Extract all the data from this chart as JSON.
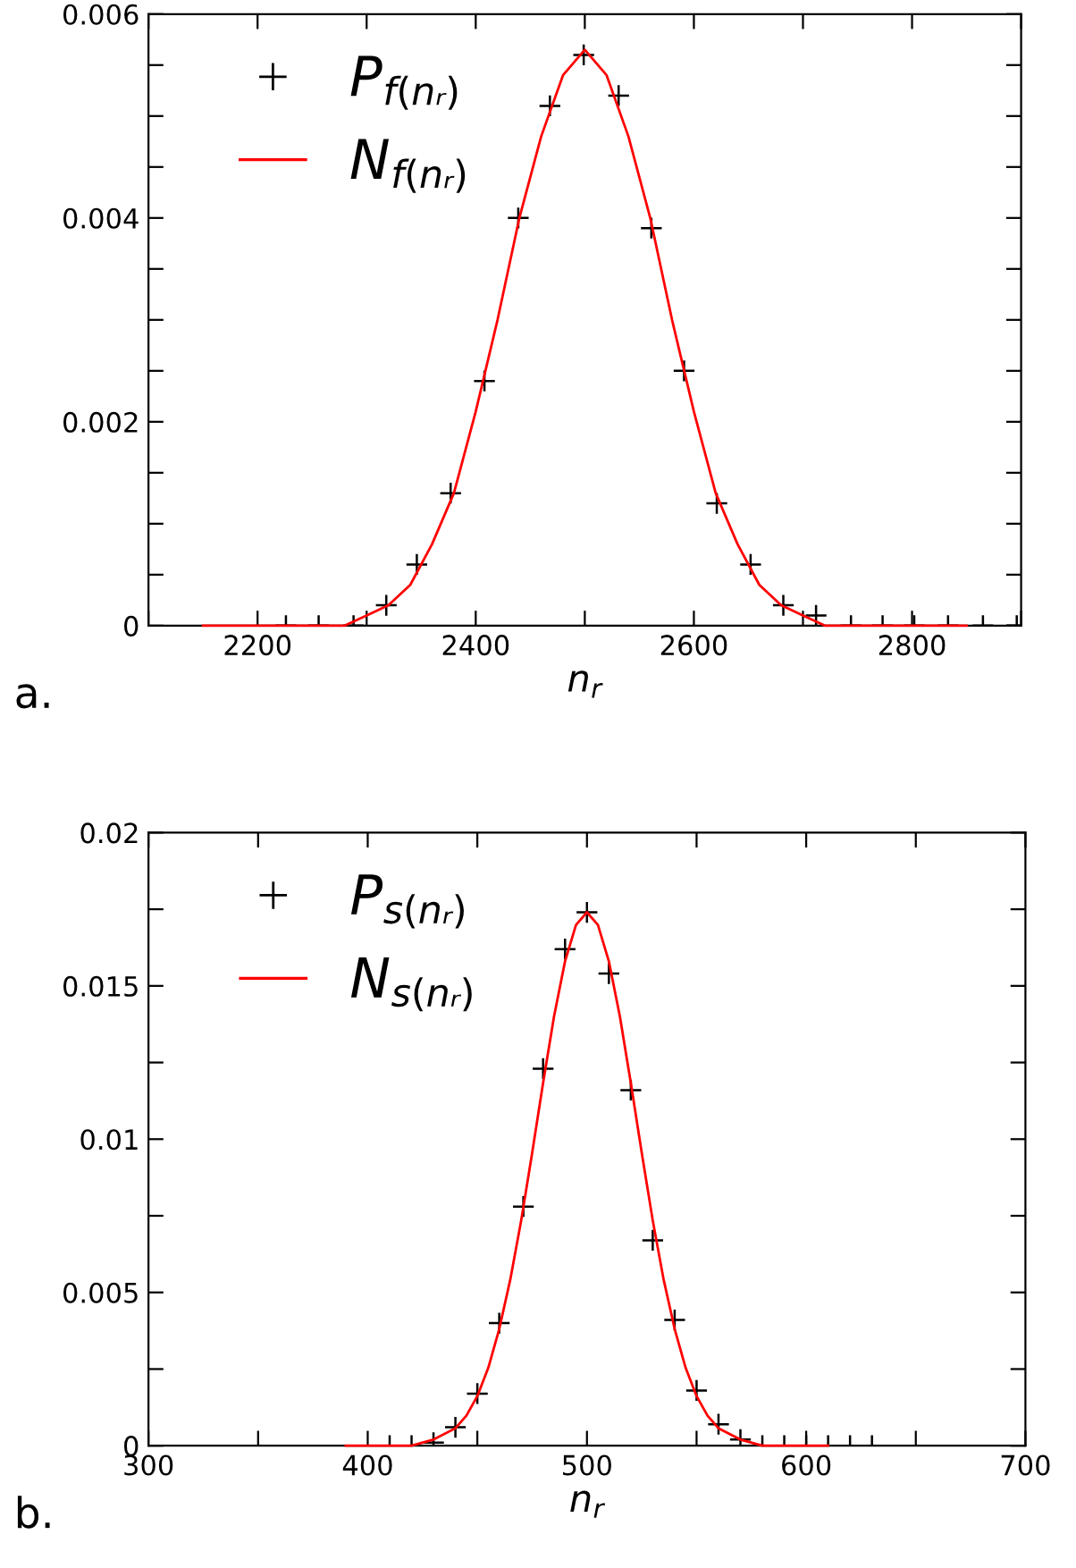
{
  "chart_data": [
    {
      "type": "scatter",
      "xlabel": "n$_{r}$",
      "annotations": [
        "a."
      ],
      "legend": "top left",
      "grid": false,
      "xlim": [
        2100,
        2900
      ],
      "xticks": [
        {
          "value": 2100,
          "label": null
        },
        2200,
        {
          "value": 2300,
          "label": null
        },
        2400,
        {
          "value": 2500,
          "label": null
        },
        2600,
        {
          "value": 2700,
          "label": null
        },
        2800,
        {
          "value": 2900,
          "label": null
        }
      ],
      "ylim": [
        0,
        0.006
      ],
      "yticks": [
        0,
        {
          "value": 0.0005,
          "label": null
        },
        {
          "value": 0.001,
          "label": null
        },
        {
          "value": 0.0015,
          "label": null
        },
        0.002,
        {
          "value": 0.0025,
          "label": null
        },
        {
          "value": 0.003,
          "label": null
        },
        {
          "value": 0.0035,
          "label": null
        },
        0.004,
        {
          "value": 0.0045,
          "label": null
        },
        {
          "value": 0.005,
          "label": null
        },
        {
          "value": 0.0055,
          "label": null
        },
        0.006
      ],
      "series": [
        {
          "name": "P$_{f(nᵣ)}$",
          "marker": "cross",
          "color": "#000000",
          "x": [
            2226,
            2256,
            2288,
            2318,
            2346,
            2377,
            2408,
            2439,
            2468,
            2499,
            2531,
            2561,
            2591,
            2621,
            2652,
            2682,
            2712,
            2744,
            2773,
            2802,
            2833,
            2865,
            2896
          ],
          "values": [
            0.0,
            0.0,
            0.0,
            0.0002,
            0.0006,
            0.0013,
            0.0024,
            0.004,
            0.0051,
            0.0056,
            0.0052,
            0.0039,
            0.0025,
            0.0012,
            0.0006,
            0.0002,
            0.0001,
            0.0,
            0.0,
            0.0,
            0.0,
            0.0,
            0.0
          ]
        },
        {
          "name": "N$_{f(nᵣ)}$",
          "type": "line",
          "marker": "none",
          "color": "#ff0000",
          "x": [
            2150,
            2180,
            2200,
            2220,
            2240,
            2260,
            2280,
            2300,
            2320,
            2340,
            2360,
            2380,
            2400,
            2420,
            2440,
            2460,
            2480,
            2500,
            2520,
            2540,
            2560,
            2580,
            2600,
            2620,
            2640,
            2660,
            2680,
            2700,
            2720,
            2740,
            2760,
            2780,
            2800,
            2820,
            2850
          ],
          "values": [
            0.0,
            0.0,
            0.0,
            0.0,
            0.0,
            0.0,
            0.0,
            0.0001,
            0.0002,
            0.0004,
            0.0008,
            0.0013,
            0.0021,
            0.003,
            0.004,
            0.0048,
            0.0054,
            0.00565,
            0.0054,
            0.0048,
            0.004,
            0.003,
            0.0021,
            0.0013,
            0.0008,
            0.0004,
            0.0002,
            0.0001,
            0.0,
            0.0,
            0.0,
            0.0,
            0.0,
            0.0,
            0.0
          ]
        }
      ]
    },
    {
      "type": "scatter",
      "xlabel": "n$_{r}$",
      "annotations": [
        "b."
      ],
      "legend": "top left",
      "grid": false,
      "xlim": [
        300,
        700
      ],
      "xticks": [
        300,
        {
          "value": 350,
          "label": null
        },
        400,
        {
          "value": 450,
          "label": null
        },
        500,
        {
          "value": 550,
          "label": null
        },
        600,
        {
          "value": 650,
          "label": null
        },
        700
      ],
      "ylim": [
        0,
        0.02
      ],
      "yticks": [
        0,
        {
          "value": 0.0025,
          "label": null
        },
        0.005,
        {
          "value": 0.0075,
          "label": null
        },
        0.01,
        {
          "value": 0.0125,
          "label": null
        },
        0.015,
        {
          "value": 0.0175,
          "label": null
        },
        0.02
      ],
      "series": [
        {
          "name": "P$_{s(nᵣ)}$",
          "marker": "cross",
          "color": "#000000",
          "x": [
            410,
            420,
            430,
            440,
            450,
            460,
            471,
            480,
            490,
            500,
            510,
            520,
            530,
            540,
            550,
            560,
            570,
            580,
            590,
            600,
            610,
            620,
            630
          ],
          "values": [
            0.0,
            0.0,
            0.0001,
            0.0006,
            0.0017,
            0.004,
            0.0078,
            0.0123,
            0.0162,
            0.0174,
            0.0154,
            0.0116,
            0.0067,
            0.0041,
            0.0018,
            0.0007,
            0.0002,
            0.0,
            0.0,
            0.0,
            0.0,
            0.0,
            0.0
          ]
        },
        {
          "name": "N$_{s(nᵣ)}$",
          "type": "line",
          "marker": "none",
          "color": "#ff0000",
          "x": [
            390,
            400,
            410,
            420,
            430,
            440,
            445,
            450,
            455,
            460,
            465,
            470,
            475,
            480,
            485,
            490,
            495,
            500,
            505,
            510,
            515,
            520,
            525,
            530,
            535,
            540,
            545,
            550,
            555,
            560,
            570,
            580,
            590,
            600,
            610
          ],
          "values": [
            0.0,
            0.0,
            0.0,
            0.0,
            0.0002,
            0.00057,
            0.00098,
            0.00162,
            0.00254,
            0.00381,
            0.00541,
            0.00735,
            0.00955,
            0.01184,
            0.01401,
            0.0158,
            0.01699,
            0.0174,
            0.01699,
            0.0158,
            0.01401,
            0.01184,
            0.00955,
            0.00735,
            0.00541,
            0.00381,
            0.00254,
            0.00162,
            0.00098,
            0.00057,
            0.0002,
            0.0,
            0.0,
            0.0,
            0.0
          ]
        }
      ]
    }
  ]
}
